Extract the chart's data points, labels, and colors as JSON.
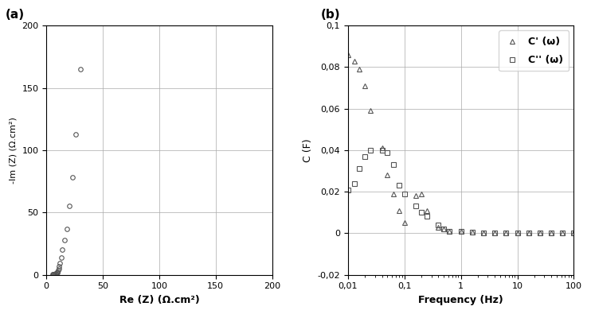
{
  "eis_re": [
    5.5,
    6.0,
    6.5,
    7.0,
    7.5,
    8.0,
    8.5,
    9.0,
    9.5,
    10.0,
    10.5,
    11.0,
    11.5,
    12.0,
    13.0,
    14.0,
    16.0,
    18.0,
    20.0,
    23.0,
    26.0,
    30.0
  ],
  "eis_im": [
    0.2,
    0.3,
    0.4,
    0.5,
    0.7,
    0.9,
    1.1,
    1.4,
    1.8,
    2.5,
    3.5,
    5.0,
    7.0,
    9.5,
    14.0,
    20.0,
    28.0,
    37.0,
    55.0,
    78.0,
    113.0,
    165.0
  ],
  "freq_c": [
    0.01,
    0.013,
    0.016,
    0.02,
    0.025,
    0.04,
    0.05,
    0.063,
    0.08,
    0.1,
    0.16,
    0.2,
    0.25,
    0.4,
    0.5,
    0.63,
    1.0,
    1.6,
    2.5,
    4.0,
    6.3,
    10.0,
    16.0,
    25.0,
    40.0,
    63.0,
    100.0
  ],
  "cprime": [
    0.086,
    0.083,
    0.079,
    0.071,
    0.059,
    0.041,
    0.028,
    0.019,
    0.011,
    0.005,
    0.018,
    0.019,
    0.011,
    0.003,
    0.002,
    0.001,
    0.001,
    0.0005,
    0.0003,
    0.0002,
    0.0001,
    0.0001,
    0.0001,
    0.0,
    0.0,
    0.0,
    0.0
  ],
  "cdprime": [
    0.021,
    0.024,
    0.031,
    0.037,
    0.04,
    0.04,
    0.039,
    0.033,
    0.023,
    0.019,
    0.013,
    0.01,
    0.008,
    0.004,
    0.002,
    0.001,
    0.001,
    0.0005,
    0.0003,
    0.0002,
    0.0001,
    0.0001,
    0.0,
    0.0,
    0.0,
    0.0,
    0.0
  ],
  "panel_a_label": "(a)",
  "panel_b_label": "(b)",
  "xlabel_a": "Re (Z) (Ω.cm²)",
  "ylabel_a": "-Im (Z) (Ω.cm²)",
  "xlabel_b": "Frequency (Hz)",
  "ylabel_b": "C (F)",
  "legend_cprime": "C' (ω)",
  "legend_cdprime": "C'' (ω)",
  "xlim_a": [
    0,
    200
  ],
  "ylim_a": [
    0,
    200
  ],
  "xticks_a": [
    0,
    50,
    100,
    150,
    200
  ],
  "yticks_a": [
    0,
    50,
    100,
    150,
    200
  ],
  "xlim_b_log": [
    0.01,
    100
  ],
  "ylim_b": [
    -0.02,
    0.1
  ],
  "yticks_b": [
    -0.02,
    0.0,
    0.02,
    0.04,
    0.06,
    0.08,
    0.1
  ],
  "xticks_b": [
    0.01,
    0.1,
    1,
    10,
    100
  ],
  "xtick_labels_b": [
    "0,01",
    "0,1",
    "1",
    "10",
    "100"
  ],
  "ytick_labels_b": [
    "-0,02",
    "0",
    "0,02",
    "0,04",
    "0,06",
    "0,08",
    "0,1"
  ],
  "marker_color": "#555555",
  "bg_color": "#ffffff"
}
